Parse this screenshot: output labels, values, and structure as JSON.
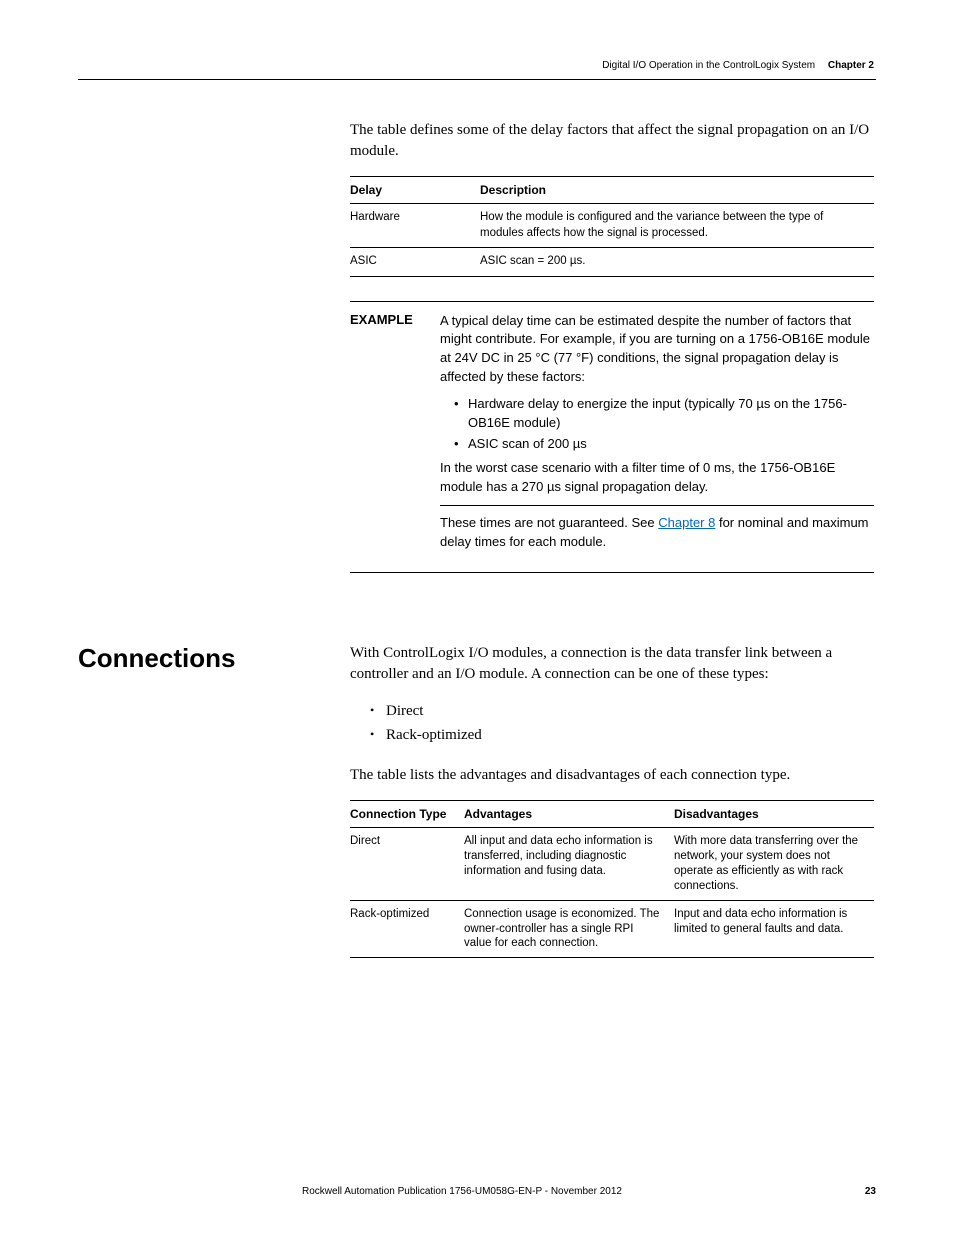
{
  "header": {
    "title": "Digital I/O Operation in the ControlLogix System",
    "chapter": "Chapter 2"
  },
  "intro_para": "The table defines some of the delay factors that affect the signal propagation on an I/O module.",
  "delay_table": {
    "headers": {
      "delay": "Delay",
      "desc": "Description"
    },
    "rows": [
      {
        "delay": "Hardware",
        "desc": "How the module is configured and the variance between the type of modules affects how the signal is processed."
      },
      {
        "delay": "ASIC",
        "desc": "ASIC scan = 200 µs."
      }
    ]
  },
  "example": {
    "label": "EXAMPLE",
    "p1": "A typical delay time can be estimated despite the number of factors that might contribute. For example, if you are turning on a 1756-OB16E module at 24V DC in 25 °C (77 °F) conditions, the signal propagation delay is affected by these factors:",
    "b1": "Hardware delay to energize the input (typically 70 µs on the 1756-OB16E module)",
    "b2": "ASIC scan of 200 µs",
    "p2": "In the worst case scenario with a filter time of 0 ms, the 1756-OB16E module has a 270 µs signal propagation delay.",
    "p3a": "These times are not guaranteed. See ",
    "p3_link": "Chapter 8",
    "p3b": " for nominal and maximum delay times for each module."
  },
  "connections": {
    "heading": "Connections",
    "p1": "With ControlLogix I/O modules, a connection is the data transfer link between a controller and an I/O module. A connection can be one of these types:",
    "bullets": {
      "b1": "Direct",
      "b2": "Rack-optimized"
    },
    "p2": "The table lists the advantages and disadvantages of each connection type.",
    "table": {
      "headers": {
        "type": "Connection Type",
        "adv": "Advantages",
        "dis": "Disadvantages"
      },
      "rows": [
        {
          "type": "Direct",
          "adv": "All input and data echo information is transferred, including diagnostic information and fusing data.",
          "dis": "With more data transferring over the network, your system does not operate as efficiently as with rack connections."
        },
        {
          "type": "Rack-optimized",
          "adv": "Connection usage is economized. The owner-controller has a single RPI value for each connection.",
          "dis": "Input and data echo information is limited to general faults and data."
        }
      ]
    }
  },
  "footer": {
    "pub": "Rockwell Automation Publication 1756-UM058G-EN-P - November 2012",
    "page": "23"
  }
}
